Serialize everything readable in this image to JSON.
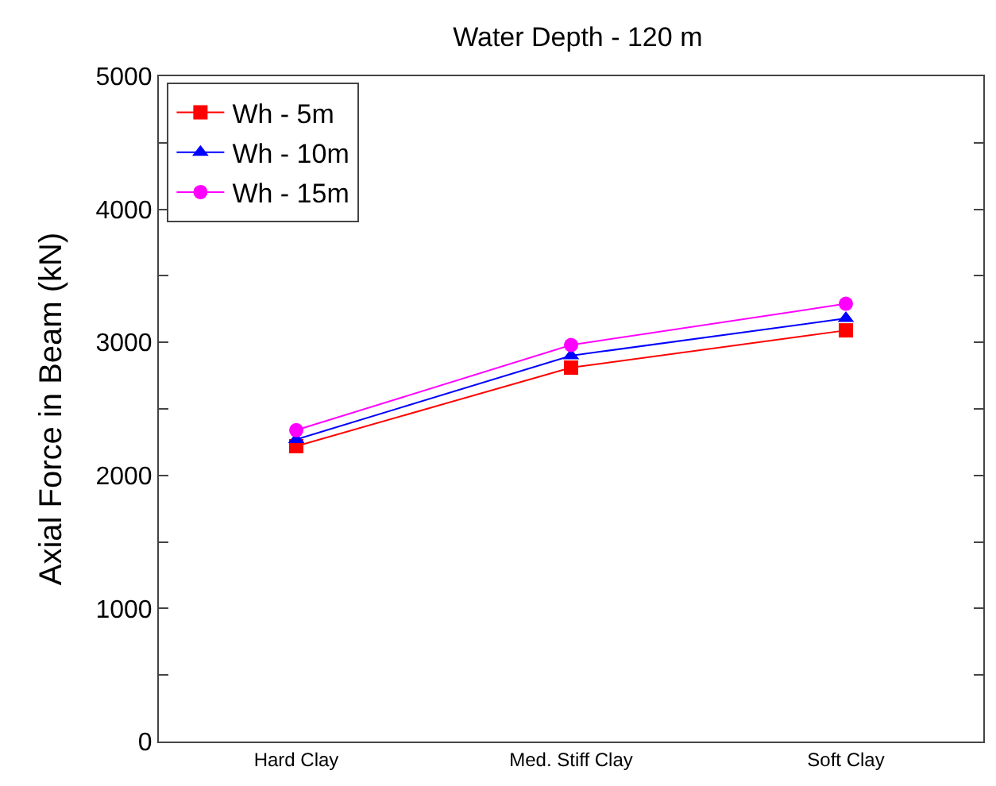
{
  "chart_data": {
    "type": "line",
    "title": "Water Depth - 120 m",
    "ylabel": "Axial Force in Beam (kN)",
    "categories": [
      "Hard Clay",
      "Med. Stiff Clay",
      "Soft Clay"
    ],
    "series": [
      {
        "name": "Wh - 5m",
        "color": "#ff0000",
        "marker": "square",
        "values": [
          2220,
          2810,
          3090
        ]
      },
      {
        "name": "Wh - 10m",
        "color": "#0000ff",
        "marker": "triangle",
        "values": [
          2270,
          2900,
          3180
        ]
      },
      {
        "name": "Wh - 15m",
        "color": "#ff00ff",
        "marker": "circle",
        "values": [
          2340,
          2980,
          3290
        ]
      }
    ],
    "ylim": [
      0,
      5000
    ],
    "yticks": [
      0,
      {
        "value": 500,
        "label": null
      },
      1000,
      {
        "value": 1500,
        "label": null
      },
      2000,
      {
        "value": 2500,
        "label": null
      },
      3000,
      {
        "value": 3500,
        "label": null
      },
      4000,
      {
        "value": 4500,
        "label": null
      },
      5000
    ],
    "legend": "top left",
    "line_style": "solid"
  }
}
